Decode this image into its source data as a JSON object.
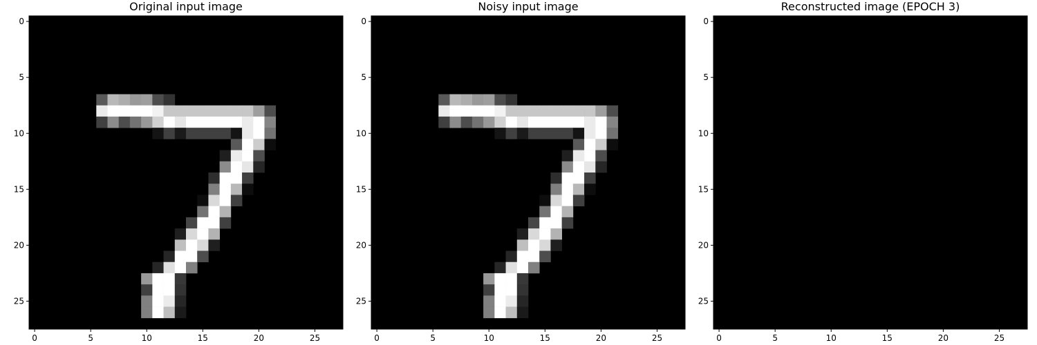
{
  "chart_data": [
    {
      "type": "heatmap",
      "title": "Original input image",
      "colormap": "gray",
      "value_range": [
        0,
        1
      ],
      "xlim": [
        -0.5,
        27.5
      ],
      "ylim": [
        27.5,
        -0.5
      ],
      "xticks": [
        0,
        5,
        10,
        15,
        20,
        25
      ],
      "yticks": [
        0,
        5,
        10,
        15,
        20,
        25
      ],
      "grid_shape": [
        28,
        28
      ],
      "nonzero_pixels": [
        [
          7,
          6,
          0.35
        ],
        [
          7,
          7,
          0.72
        ],
        [
          7,
          8,
          0.68
        ],
        [
          7,
          9,
          0.6
        ],
        [
          7,
          10,
          0.62
        ],
        [
          7,
          11,
          0.3
        ],
        [
          7,
          12,
          0.2
        ],
        [
          8,
          6,
          0.92
        ],
        [
          8,
          7,
          1
        ],
        [
          8,
          8,
          1
        ],
        [
          8,
          9,
          1
        ],
        [
          8,
          10,
          1
        ],
        [
          8,
          11,
          0.95
        ],
        [
          8,
          12,
          0.78
        ],
        [
          8,
          13,
          0.78
        ],
        [
          8,
          14,
          0.78
        ],
        [
          8,
          15,
          0.78
        ],
        [
          8,
          16,
          0.78
        ],
        [
          8,
          17,
          0.78
        ],
        [
          8,
          18,
          0.78
        ],
        [
          8,
          19,
          0.78
        ],
        [
          8,
          20,
          0.62
        ],
        [
          8,
          21,
          0.3
        ],
        [
          9,
          6,
          0.25
        ],
        [
          9,
          7,
          0.55
        ],
        [
          9,
          8,
          0.3
        ],
        [
          9,
          9,
          0.45
        ],
        [
          9,
          10,
          0.6
        ],
        [
          9,
          11,
          0.82
        ],
        [
          9,
          12,
          1
        ],
        [
          9,
          13,
          0.9
        ],
        [
          9,
          14,
          1
        ],
        [
          9,
          15,
          1
        ],
        [
          9,
          16,
          1
        ],
        [
          9,
          17,
          1
        ],
        [
          9,
          18,
          1
        ],
        [
          9,
          19,
          0.92
        ],
        [
          9,
          20,
          1
        ],
        [
          9,
          21,
          0.52
        ],
        [
          10,
          11,
          0.08
        ],
        [
          10,
          12,
          0.25
        ],
        [
          10,
          13,
          0.1
        ],
        [
          10,
          14,
          0.25
        ],
        [
          10,
          15,
          0.25
        ],
        [
          10,
          16,
          0.25
        ],
        [
          10,
          17,
          0.25
        ],
        [
          10,
          18,
          0.08
        ],
        [
          10,
          19,
          0.92
        ],
        [
          10,
          20,
          1
        ],
        [
          10,
          21,
          0.45
        ],
        [
          11,
          18,
          0.35
        ],
        [
          11,
          19,
          1
        ],
        [
          11,
          20,
          0.8
        ],
        [
          11,
          21,
          0.05
        ],
        [
          12,
          17,
          0.12
        ],
        [
          12,
          18,
          0.92
        ],
        [
          12,
          19,
          1
        ],
        [
          12,
          20,
          0.3
        ],
        [
          13,
          17,
          0.55
        ],
        [
          13,
          18,
          1
        ],
        [
          13,
          19,
          0.9
        ],
        [
          13,
          20,
          0.15
        ],
        [
          14,
          16,
          0.18
        ],
        [
          14,
          17,
          1
        ],
        [
          14,
          18,
          1
        ],
        [
          14,
          19,
          0.25
        ],
        [
          15,
          16,
          0.5
        ],
        [
          15,
          17,
          1
        ],
        [
          15,
          18,
          0.72
        ],
        [
          15,
          19,
          0.05
        ],
        [
          16,
          15,
          0.05
        ],
        [
          16,
          16,
          0.85
        ],
        [
          16,
          17,
          1
        ],
        [
          16,
          18,
          0.25
        ],
        [
          17,
          15,
          0.45
        ],
        [
          17,
          16,
          1
        ],
        [
          17,
          17,
          0.7
        ],
        [
          18,
          14,
          0.28
        ],
        [
          18,
          15,
          1
        ],
        [
          18,
          16,
          1
        ],
        [
          18,
          17,
          0.25
        ],
        [
          19,
          13,
          0.12
        ],
        [
          19,
          14,
          0.85
        ],
        [
          19,
          15,
          1
        ],
        [
          19,
          16,
          0.7
        ],
        [
          20,
          13,
          0.75
        ],
        [
          20,
          14,
          1
        ],
        [
          20,
          15,
          0.85
        ],
        [
          20,
          16,
          0.12
        ],
        [
          21,
          12,
          0.15
        ],
        [
          21,
          13,
          1
        ],
        [
          21,
          14,
          1
        ],
        [
          21,
          15,
          0.3
        ],
        [
          22,
          11,
          0.15
        ],
        [
          22,
          12,
          0.88
        ],
        [
          22,
          13,
          1
        ],
        [
          22,
          14,
          0.5
        ],
        [
          23,
          10,
          0.6
        ],
        [
          23,
          11,
          1
        ],
        [
          23,
          12,
          1
        ],
        [
          23,
          13,
          0.22
        ],
        [
          24,
          10,
          0.25
        ],
        [
          24,
          11,
          1
        ],
        [
          24,
          12,
          1
        ],
        [
          24,
          13,
          0.2
        ],
        [
          25,
          10,
          0.5
        ],
        [
          25,
          11,
          1
        ],
        [
          25,
          12,
          0.92
        ],
        [
          25,
          13,
          0.15
        ],
        [
          26,
          10,
          0.5
        ],
        [
          26,
          11,
          1
        ],
        [
          26,
          12,
          0.75
        ],
        [
          26,
          13,
          0.1
        ]
      ]
    },
    {
      "type": "heatmap",
      "title": "Noisy input image",
      "colormap": "gray",
      "value_range": [
        0,
        1
      ],
      "xlim": [
        -0.5,
        27.5
      ],
      "ylim": [
        27.5,
        -0.5
      ],
      "xticks": [
        0,
        5,
        10,
        15,
        20,
        25
      ],
      "yticks": [
        0,
        5,
        10,
        15,
        20,
        25
      ],
      "grid_shape": [
        28,
        28
      ],
      "nonzero_pixels": [
        [
          7,
          6,
          0.35
        ],
        [
          7,
          7,
          0.72
        ],
        [
          7,
          8,
          0.68
        ],
        [
          7,
          9,
          0.6
        ],
        [
          7,
          10,
          0.62
        ],
        [
          7,
          11,
          0.3
        ],
        [
          7,
          12,
          0.2
        ],
        [
          8,
          6,
          0.92
        ],
        [
          8,
          7,
          1
        ],
        [
          8,
          8,
          1
        ],
        [
          8,
          9,
          1
        ],
        [
          8,
          10,
          1
        ],
        [
          8,
          11,
          0.95
        ],
        [
          8,
          12,
          0.78
        ],
        [
          8,
          13,
          0.78
        ],
        [
          8,
          14,
          0.78
        ],
        [
          8,
          15,
          0.78
        ],
        [
          8,
          16,
          0.78
        ],
        [
          8,
          17,
          0.78
        ],
        [
          8,
          18,
          0.78
        ],
        [
          8,
          19,
          0.78
        ],
        [
          8,
          20,
          0.62
        ],
        [
          8,
          21,
          0.3
        ],
        [
          9,
          6,
          0.25
        ],
        [
          9,
          7,
          0.55
        ],
        [
          9,
          8,
          0.3
        ],
        [
          9,
          9,
          0.45
        ],
        [
          9,
          10,
          0.6
        ],
        [
          9,
          11,
          0.82
        ],
        [
          9,
          12,
          1
        ],
        [
          9,
          13,
          0.9
        ],
        [
          9,
          14,
          1
        ],
        [
          9,
          15,
          1
        ],
        [
          9,
          16,
          1
        ],
        [
          9,
          17,
          1
        ],
        [
          9,
          18,
          1
        ],
        [
          9,
          19,
          0.92
        ],
        [
          9,
          20,
          1
        ],
        [
          9,
          21,
          0.52
        ],
        [
          10,
          11,
          0.08
        ],
        [
          10,
          12,
          0.25
        ],
        [
          10,
          13,
          0.1
        ],
        [
          10,
          14,
          0.25
        ],
        [
          10,
          15,
          0.25
        ],
        [
          10,
          16,
          0.25
        ],
        [
          10,
          17,
          0.25
        ],
        [
          10,
          18,
          0.08
        ],
        [
          10,
          19,
          0.92
        ],
        [
          10,
          20,
          1
        ],
        [
          10,
          21,
          0.45
        ],
        [
          11,
          18,
          0.35
        ],
        [
          11,
          19,
          1
        ],
        [
          11,
          20,
          0.8
        ],
        [
          11,
          21,
          0.05
        ],
        [
          12,
          17,
          0.12
        ],
        [
          12,
          18,
          0.92
        ],
        [
          12,
          19,
          1
        ],
        [
          12,
          20,
          0.3
        ],
        [
          13,
          17,
          0.55
        ],
        [
          13,
          18,
          1
        ],
        [
          13,
          19,
          0.9
        ],
        [
          13,
          20,
          0.15
        ],
        [
          14,
          16,
          0.18
        ],
        [
          14,
          17,
          1
        ],
        [
          14,
          18,
          1
        ],
        [
          14,
          19,
          0.25
        ],
        [
          15,
          16,
          0.5
        ],
        [
          15,
          17,
          1
        ],
        [
          15,
          18,
          0.72
        ],
        [
          15,
          19,
          0.05
        ],
        [
          16,
          15,
          0.05
        ],
        [
          16,
          16,
          0.85
        ],
        [
          16,
          17,
          1
        ],
        [
          16,
          18,
          0.25
        ],
        [
          17,
          15,
          0.45
        ],
        [
          17,
          16,
          1
        ],
        [
          17,
          17,
          0.7
        ],
        [
          18,
          14,
          0.28
        ],
        [
          18,
          15,
          1
        ],
        [
          18,
          16,
          1
        ],
        [
          18,
          17,
          0.25
        ],
        [
          19,
          13,
          0.12
        ],
        [
          19,
          14,
          0.85
        ],
        [
          19,
          15,
          1
        ],
        [
          19,
          16,
          0.7
        ],
        [
          20,
          13,
          0.75
        ],
        [
          20,
          14,
          1
        ],
        [
          20,
          15,
          0.85
        ],
        [
          20,
          16,
          0.12
        ],
        [
          21,
          12,
          0.15
        ],
        [
          21,
          13,
          1
        ],
        [
          21,
          14,
          1
        ],
        [
          21,
          15,
          0.3
        ],
        [
          22,
          11,
          0.15
        ],
        [
          22,
          12,
          0.88
        ],
        [
          22,
          13,
          1
        ],
        [
          22,
          14,
          0.5
        ],
        [
          23,
          10,
          0.6
        ],
        [
          23,
          11,
          1
        ],
        [
          23,
          12,
          1
        ],
        [
          23,
          13,
          0.22
        ],
        [
          24,
          10,
          0.25
        ],
        [
          24,
          11,
          1
        ],
        [
          24,
          12,
          1
        ],
        [
          24,
          13,
          0.2
        ],
        [
          25,
          10,
          0.5
        ],
        [
          25,
          11,
          1
        ],
        [
          25,
          12,
          0.92
        ],
        [
          25,
          13,
          0.15
        ],
        [
          26,
          10,
          0.5
        ],
        [
          26,
          11,
          1
        ],
        [
          26,
          12,
          0.75
        ],
        [
          26,
          13,
          0.1
        ]
      ]
    },
    {
      "type": "heatmap",
      "title": "Reconstructed image (EPOCH 3)",
      "colormap": "gray",
      "value_range": [
        0,
        1
      ],
      "xlim": [
        -0.5,
        27.5
      ],
      "ylim": [
        27.5,
        -0.5
      ],
      "xticks": [
        0,
        5,
        10,
        15,
        20,
        25
      ],
      "yticks": [
        0,
        5,
        10,
        15,
        20,
        25
      ],
      "grid_shape": [
        28,
        28
      ],
      "nonzero_pixels": []
    }
  ]
}
